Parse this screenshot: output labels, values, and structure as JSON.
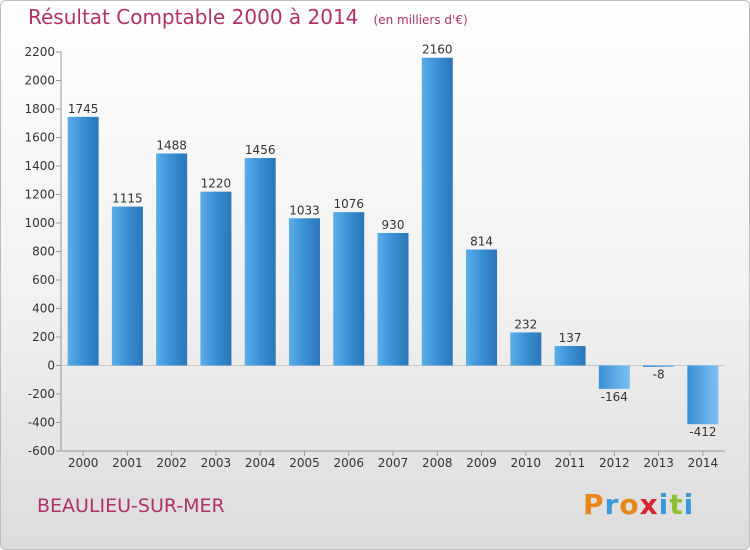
{
  "chart_data": {
    "type": "bar",
    "title": "Résultat Comptable 2000 à 2014",
    "subtitle": "(en milliers d'€)",
    "xlabel": "",
    "ylabel": "",
    "categories": [
      "2000",
      "2001",
      "2002",
      "2003",
      "2004",
      "2005",
      "2006",
      "2007",
      "2008",
      "2009",
      "2010",
      "2011",
      "2012",
      "2013",
      "2014"
    ],
    "values": [
      1745,
      1115,
      1488,
      1220,
      1456,
      1033,
      1076,
      930,
      2160,
      814,
      232,
      137,
      -164,
      -8,
      -412
    ],
    "value_labels": [
      "1745",
      "1115",
      "1488",
      "1220",
      "1456",
      "1033",
      "1076",
      "930",
      "2160",
      "814",
      "232",
      "137",
      "-164",
      "-8",
      "-412"
    ],
    "ylim": [
      -600,
      2200
    ],
    "yticks": [
      -600,
      -400,
      -200,
      0,
      200,
      400,
      600,
      800,
      1000,
      1200,
      1400,
      1600,
      1800,
      2000,
      2200
    ],
    "grid": false,
    "bar_color": "#3a8fd4"
  },
  "footer": {
    "commune": "BEAULIEU-SUR-MER",
    "logo_letters": [
      "P",
      "r",
      "o",
      "x",
      "i",
      "t",
      "i"
    ],
    "logo_colors": [
      "#e8861a",
      "#3a9ad9",
      "#e8861a",
      "#d7262e",
      "#3a9ad9",
      "#8dbf2e",
      "#3a9ad9"
    ]
  }
}
